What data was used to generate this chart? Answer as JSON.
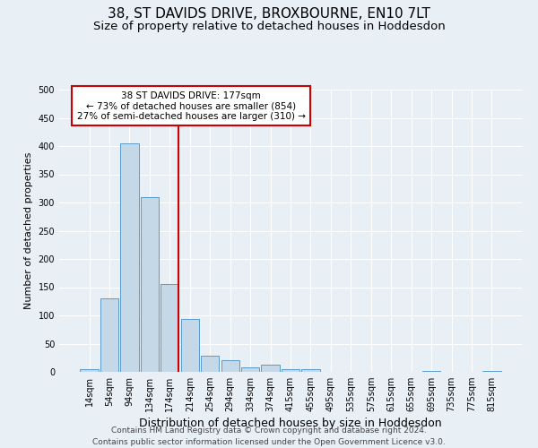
{
  "title": "38, ST DAVIDS DRIVE, BROXBOURNE, EN10 7LT",
  "subtitle": "Size of property relative to detached houses in Hoddesdon",
  "xlabel": "Distribution of detached houses by size in Hoddesdon",
  "ylabel": "Number of detached properties",
  "footer_line1": "Contains HM Land Registry data © Crown copyright and database right 2024.",
  "footer_line2": "Contains public sector information licensed under the Open Government Licence v3.0.",
  "bar_labels": [
    "14sqm",
    "54sqm",
    "94sqm",
    "134sqm",
    "174sqm",
    "214sqm",
    "254sqm",
    "294sqm",
    "334sqm",
    "374sqm",
    "415sqm",
    "455sqm",
    "495sqm",
    "535sqm",
    "575sqm",
    "615sqm",
    "655sqm",
    "695sqm",
    "735sqm",
    "775sqm",
    "815sqm"
  ],
  "bar_values": [
    5,
    130,
    405,
    310,
    155,
    93,
    29,
    20,
    8,
    12,
    4,
    5,
    0,
    0,
    0,
    0,
    0,
    2,
    0,
    0,
    1
  ],
  "bar_color": "#c5d8e8",
  "bar_edge_color": "#5b9bc8",
  "ylim": [
    0,
    500
  ],
  "yticks": [
    0,
    50,
    100,
    150,
    200,
    250,
    300,
    350,
    400,
    450,
    500
  ],
  "property_label": "38 ST DAVIDS DRIVE: 177sqm",
  "annotation_line1": "← 73% of detached houses are smaller (854)",
  "annotation_line2": "27% of semi-detached houses are larger (310) →",
  "vline_color": "#cc0000",
  "annotation_box_edge_color": "#cc0000",
  "background_color": "#e8eff5",
  "plot_bg_color": "#e8eff5",
  "grid_color": "#ffffff",
  "title_fontsize": 11,
  "subtitle_fontsize": 9.5,
  "xlabel_fontsize": 9,
  "ylabel_fontsize": 8,
  "tick_fontsize": 7,
  "annotation_fontsize": 7.5,
  "footer_fontsize": 6.5
}
